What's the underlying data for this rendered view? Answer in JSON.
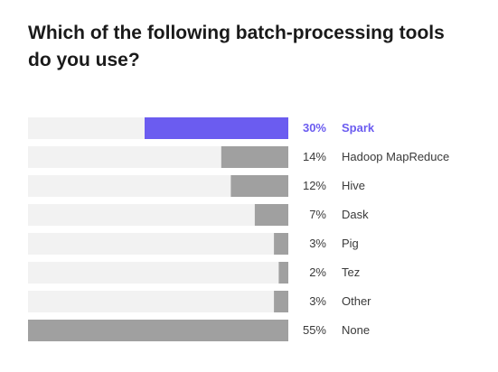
{
  "chart_data": {
    "type": "bar",
    "orientation": "horizontal",
    "title": "Which of the following batch-processing tools do you use?",
    "categories": [
      "Spark",
      "Hadoop MapReduce",
      "Hive",
      "Dask",
      "Pig",
      "Tez",
      "Other",
      "None"
    ],
    "values": [
      30,
      14,
      12,
      7,
      3,
      2,
      3,
      55
    ],
    "value_labels": [
      "30%",
      "14%",
      "12%",
      "7%",
      "3%",
      "2%",
      "3%",
      "55%"
    ],
    "unit": "%",
    "xlim": [
      0,
      100
    ],
    "highlight_index": 0,
    "grid": false,
    "legend": "none"
  },
  "colors": {
    "track": "#f2f2f2",
    "bar": "#a0a0a0",
    "highlight": "#6b5cf0",
    "text": "#3a3a3a",
    "title": "#1a1a1a"
  }
}
